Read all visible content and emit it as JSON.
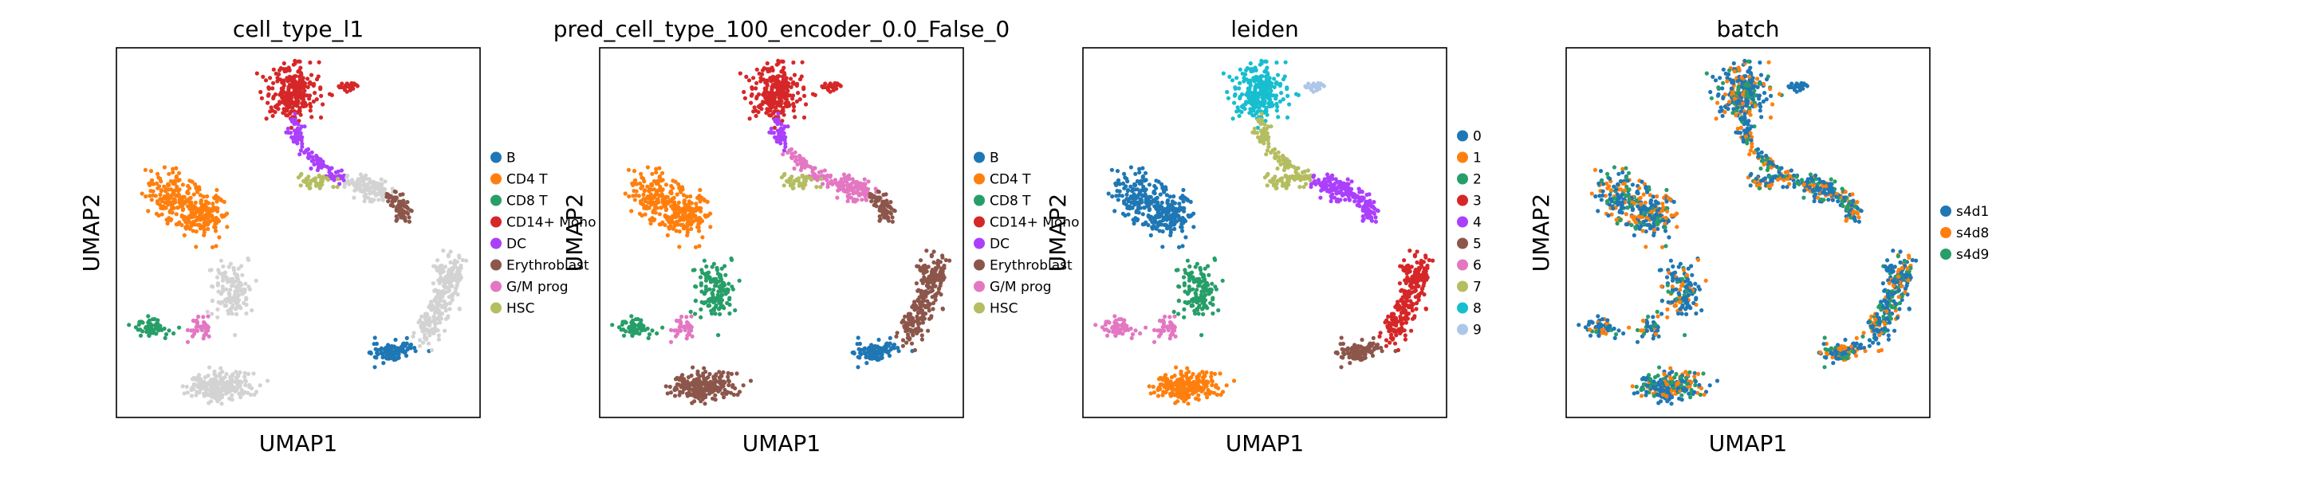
{
  "chart_data": [
    {
      "type": "scatter",
      "title": "cell_type_l1",
      "xlabel": "UMAP1",
      "ylabel": "UMAP2",
      "legend": [
        {
          "name": "B",
          "color": "#1f77b4"
        },
        {
          "name": "CD4 T",
          "color": "#ff7f0e"
        },
        {
          "name": "CD8 T",
          "color": "#279e68"
        },
        {
          "name": "CD14+ Mono",
          "color": "#d62728"
        },
        {
          "name": "DC",
          "color": "#aa40fc"
        },
        {
          "name": "Erythroblast",
          "color": "#8c564b"
        },
        {
          "name": "G/M prog",
          "color": "#e377c2"
        },
        {
          "name": "HSC",
          "color": "#b5bd61"
        }
      ],
      "unlabeled_color": "#d3d3d3"
    },
    {
      "type": "scatter",
      "title": "pred_cell_type_100_encoder_0.0_False_0",
      "xlabel": "UMAP1",
      "ylabel": "UMAP2",
      "legend": [
        {
          "name": "B",
          "color": "#1f77b4"
        },
        {
          "name": "CD4 T",
          "color": "#ff7f0e"
        },
        {
          "name": "CD8 T",
          "color": "#279e68"
        },
        {
          "name": "CD14+ Mono",
          "color": "#d62728"
        },
        {
          "name": "DC",
          "color": "#aa40fc"
        },
        {
          "name": "Erythroblast",
          "color": "#8c564b"
        },
        {
          "name": "G/M prog",
          "color": "#e377c2"
        },
        {
          "name": "HSC",
          "color": "#b5bd61"
        }
      ]
    },
    {
      "type": "scatter",
      "title": "leiden",
      "xlabel": "UMAP1",
      "ylabel": "UMAP2",
      "legend": [
        {
          "name": "0",
          "color": "#1f77b4"
        },
        {
          "name": "1",
          "color": "#ff7f0e"
        },
        {
          "name": "2",
          "color": "#279e68"
        },
        {
          "name": "3",
          "color": "#d62728"
        },
        {
          "name": "4",
          "color": "#aa40fc"
        },
        {
          "name": "5",
          "color": "#8c564b"
        },
        {
          "name": "6",
          "color": "#e377c2"
        },
        {
          "name": "7",
          "color": "#b5bd61"
        },
        {
          "name": "8",
          "color": "#17becf"
        },
        {
          "name": "9",
          "color": "#aec7e8"
        }
      ]
    },
    {
      "type": "scatter",
      "title": "batch",
      "xlabel": "UMAP1",
      "ylabel": "UMAP2",
      "legend": [
        {
          "name": "s4d1",
          "color": "#1f77b4"
        },
        {
          "name": "s4d8",
          "color": "#ff7f0e"
        },
        {
          "name": "s4d9",
          "color": "#279e68"
        }
      ]
    }
  ]
}
